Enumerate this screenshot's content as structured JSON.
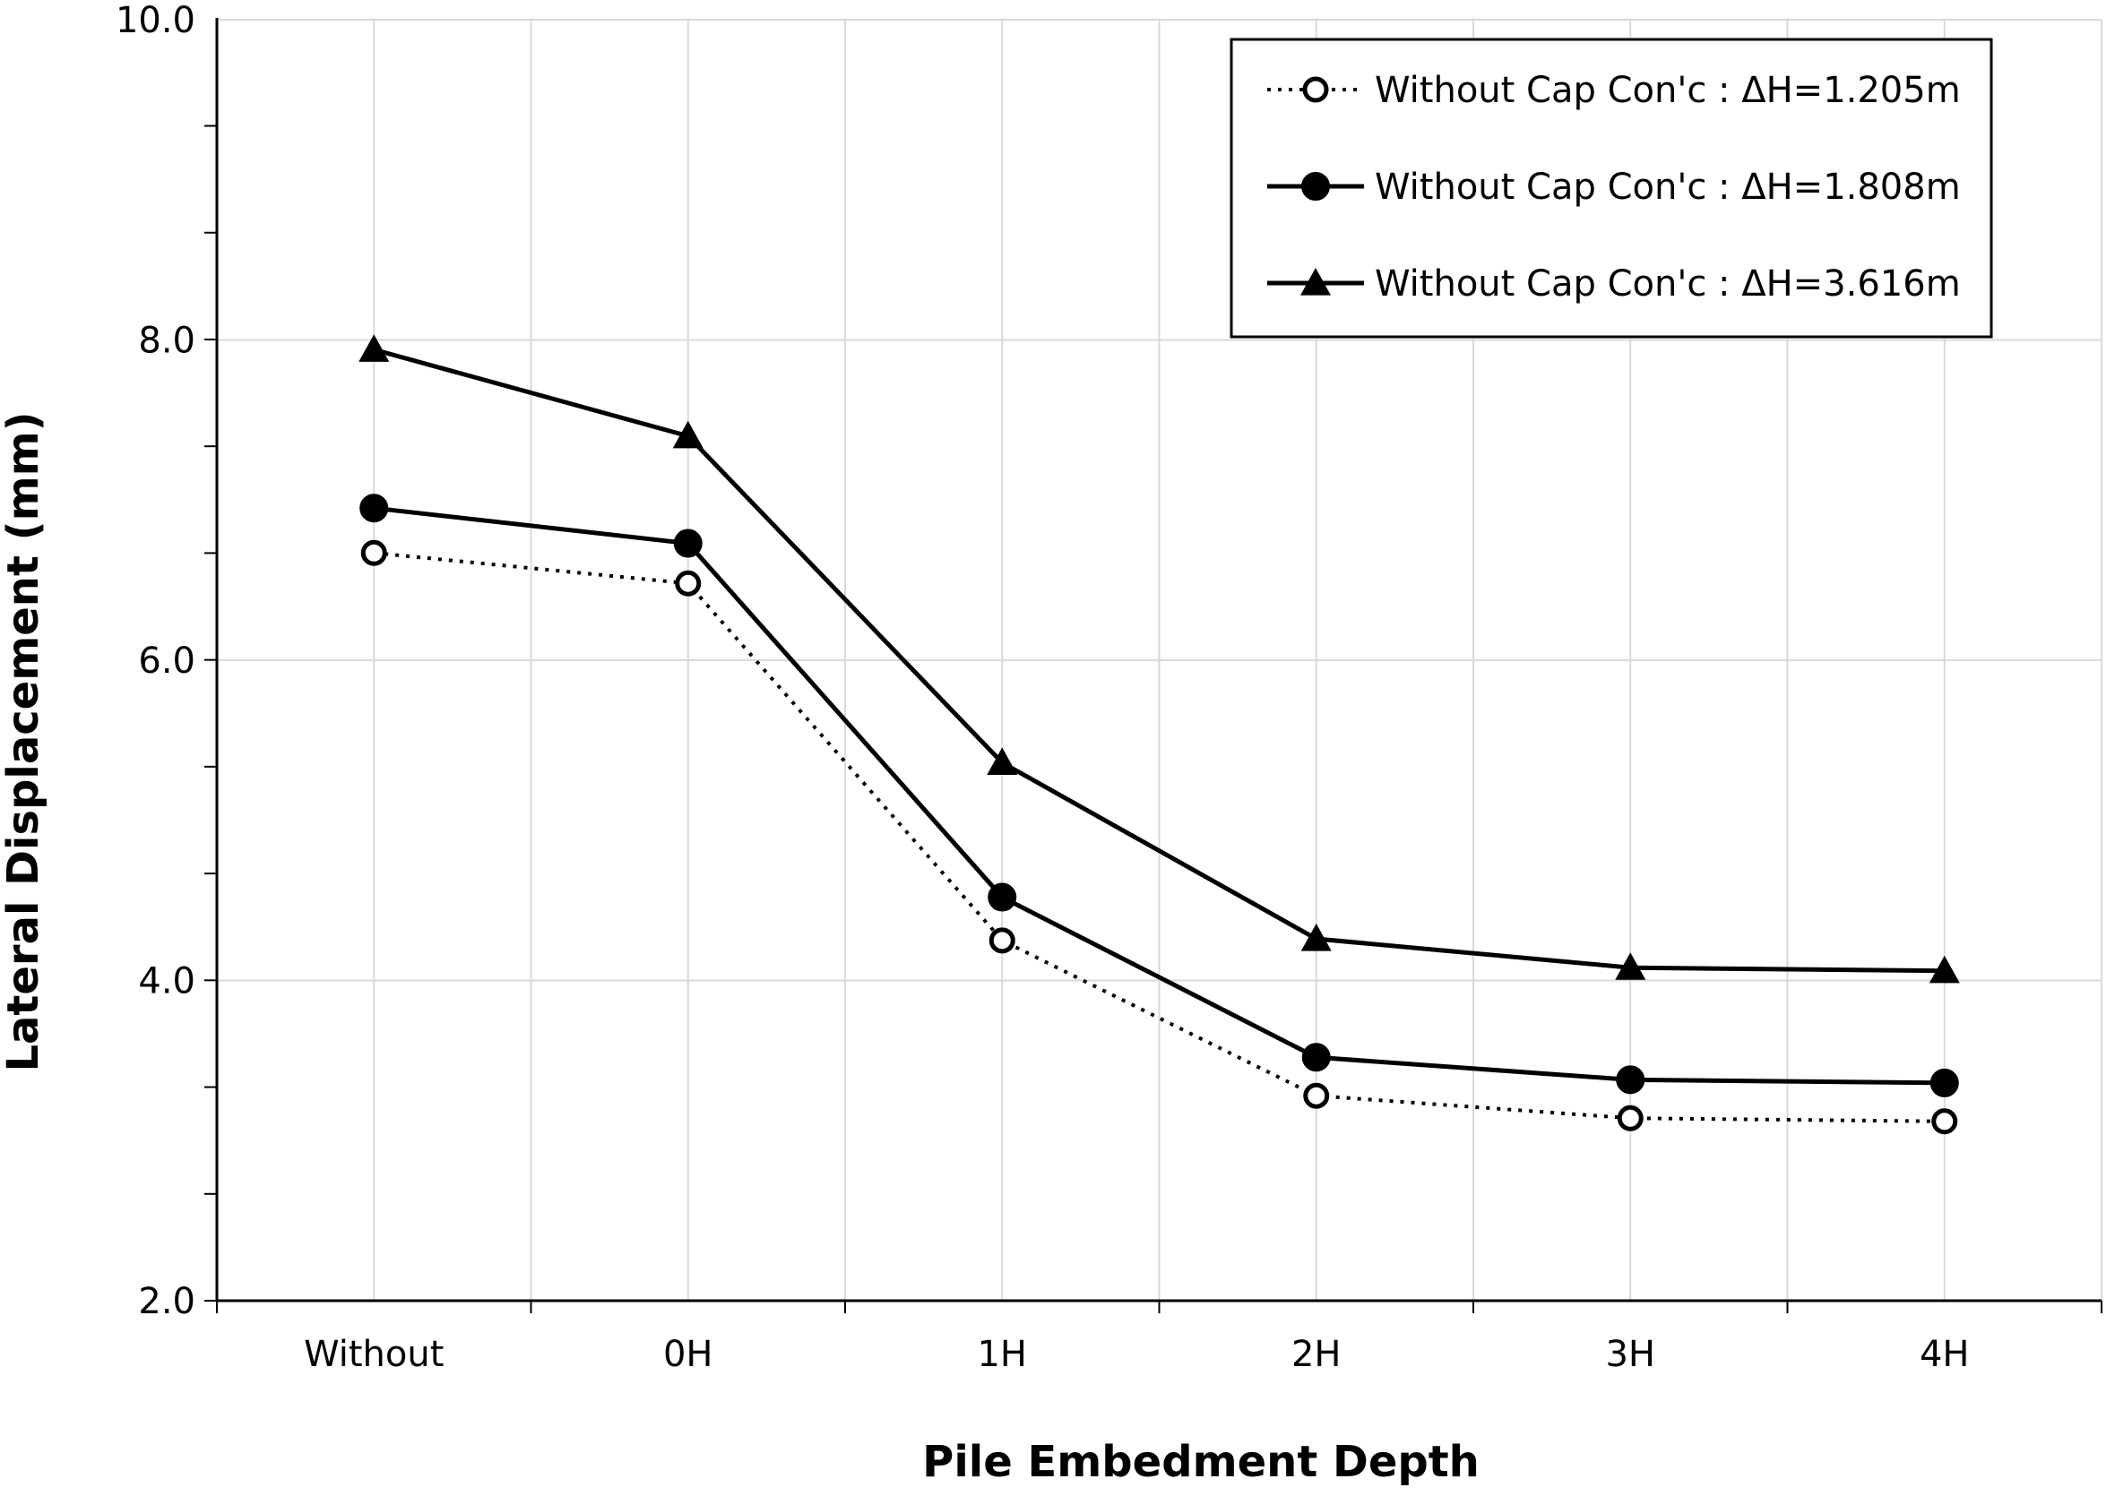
{
  "chart_data": {
    "type": "line",
    "title": "",
    "xlabel": "Pile Embedment Depth",
    "ylabel": "Lateral Displacement (mm)",
    "categories": [
      "Without",
      "0H",
      "1H",
      "2H",
      "3H",
      "4H"
    ],
    "ylim": [
      2.0,
      10.0
    ],
    "yticks": [
      "2.0",
      "4.0",
      "6.0",
      "8.0",
      "10.0"
    ],
    "ytick_values": [
      2.0,
      4.0,
      6.0,
      8.0,
      10.0
    ],
    "y_minor_step": 0.667,
    "grid": true,
    "legend_position": "top-right",
    "series": [
      {
        "name": "Without Cap Con'c : ΔH=1.205m",
        "marker": "open-circle",
        "line_style": "dotted",
        "values": [
          6.67,
          6.48,
          4.25,
          3.28,
          3.14,
          3.12
        ]
      },
      {
        "name": "Without Cap Con'c : ΔH=1.808m",
        "marker": "filled-circle",
        "line_style": "solid",
        "values": [
          6.95,
          6.73,
          4.52,
          3.52,
          3.38,
          3.36
        ]
      },
      {
        "name": "Without Cap Con'c : ΔH=3.616m",
        "marker": "filled-triangle",
        "line_style": "solid",
        "values": [
          7.94,
          7.4,
          5.36,
          4.26,
          4.08,
          4.06
        ]
      }
    ],
    "colors": {
      "line": "#000000",
      "grid": "#d9d9d9",
      "background": "#ffffff"
    }
  }
}
